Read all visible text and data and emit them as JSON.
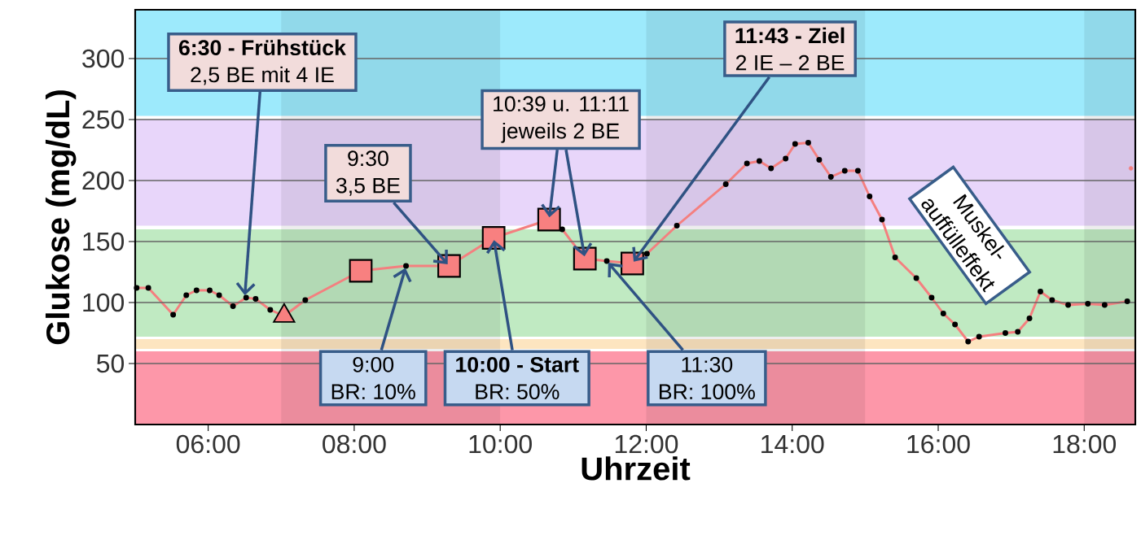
{
  "chart_data": {
    "type": "line",
    "xlabel": "Uhrzeit",
    "ylabel": "Glukose (mg/dL)",
    "xlim": [
      5.0,
      18.7
    ],
    "ylim": [
      0,
      340
    ],
    "xticks": [
      {
        "value": 6,
        "label": "06:00"
      },
      {
        "value": 8,
        "label": "08:00"
      },
      {
        "value": 10,
        "label": "10:00"
      },
      {
        "value": 12,
        "label": "12:00"
      },
      {
        "value": 14,
        "label": "14:00"
      },
      {
        "value": 16,
        "label": "16:00"
      },
      {
        "value": 18,
        "label": "18:00"
      }
    ],
    "yticks": [
      50,
      100,
      150,
      200,
      250,
      300
    ],
    "grid": "y",
    "bands": [
      {
        "axis": "y",
        "from": 0,
        "to": 60,
        "color": "#fd97a9"
      },
      {
        "axis": "y",
        "from": 62,
        "to": 70,
        "color": "#fde5c0"
      },
      {
        "axis": "y",
        "from": 72,
        "to": 160,
        "color": "#c0eac2"
      },
      {
        "axis": "y",
        "from": 163,
        "to": 250,
        "color": "#e8d6fa"
      },
      {
        "axis": "y",
        "from": 253,
        "to": 340,
        "color": "#9deafc"
      },
      {
        "axis": "x",
        "from": 7,
        "to": 10
      },
      {
        "axis": "x",
        "from": 12,
        "to": 15
      },
      {
        "axis": "x",
        "from": 18,
        "to": 18.7
      }
    ],
    "series": [
      {
        "color": "#f47f7f",
        "marker": "circle",
        "x": [
          5.02,
          5.18,
          5.52,
          5.7,
          5.84,
          6.02,
          6.15,
          6.34,
          6.52,
          6.65,
          6.85,
          7.04,
          7.33,
          8.09,
          8.71,
          9.3,
          9.91,
          10.67,
          10.85,
          11.16,
          11.46,
          11.81,
          12.01,
          12.42,
          13.09,
          13.38,
          13.55,
          13.71,
          13.91,
          14.04,
          14.22,
          14.37,
          14.53,
          14.72,
          14.9,
          15.06,
          15.23,
          15.41,
          15.7,
          15.91,
          16.07,
          16.23,
          16.41,
          16.56,
          16.92,
          17.09,
          17.25,
          17.4,
          17.56,
          17.78,
          18.05,
          18.28,
          18.59
        ],
        "values": [
          112,
          112,
          90,
          106,
          110,
          110,
          106,
          97,
          104,
          103,
          94,
          89,
          102,
          126,
          130,
          130,
          153,
          168,
          160,
          136,
          134,
          132,
          140,
          163,
          197,
          214,
          216,
          210,
          218,
          230,
          231,
          217,
          203,
          208,
          208,
          187,
          168,
          137,
          120,
          104,
          91,
          82,
          68,
          72,
          75,
          76,
          87,
          109,
          102,
          98,
          99,
          98,
          101
        ]
      },
      {
        "type": "scatter",
        "color": "#f88080",
        "marker": "square",
        "x": [
          8.09,
          9.3,
          9.91,
          10.67,
          11.16,
          11.81
        ],
        "values": [
          126,
          130,
          153,
          168,
          136,
          132
        ]
      },
      {
        "type": "scatter",
        "color": "#f88080",
        "marker": "triangle",
        "x": [
          7.04
        ],
        "values": [
          89
        ]
      },
      {
        "type": "scatter",
        "color": "#f47f7f",
        "marker": "circle",
        "x": [
          18.64
        ],
        "values": [
          210
        ]
      }
    ],
    "annotations": [
      {
        "text": "**6:30 - Frühstück**\n2,5 BE mit 4 IE",
        "x": 6.5,
        "y": 104
      },
      {
        "text": "9:30\n3,5 BE",
        "x": 9.3,
        "y": 130
      },
      {
        "text": "10:39 u. 11:11\njeweils 2 BE",
        "x": 10.67,
        "y": 168
      },
      {
        "text": "**11:43  - Ziel**\n2 IE – 2 BE",
        "x": 11.81,
        "y": 132
      },
      {
        "text": "9:00\nBR: 10%",
        "x": 8.71,
        "y": 130
      },
      {
        "text": "**10:00 - Start**\nBR: 50%",
        "x": 9.91,
        "y": 153
      },
      {
        "text": "11:30\nBR: 100%",
        "x": 11.46,
        "y": 134
      },
      "Muskel-\nauffülleffekt"
    ]
  }
}
